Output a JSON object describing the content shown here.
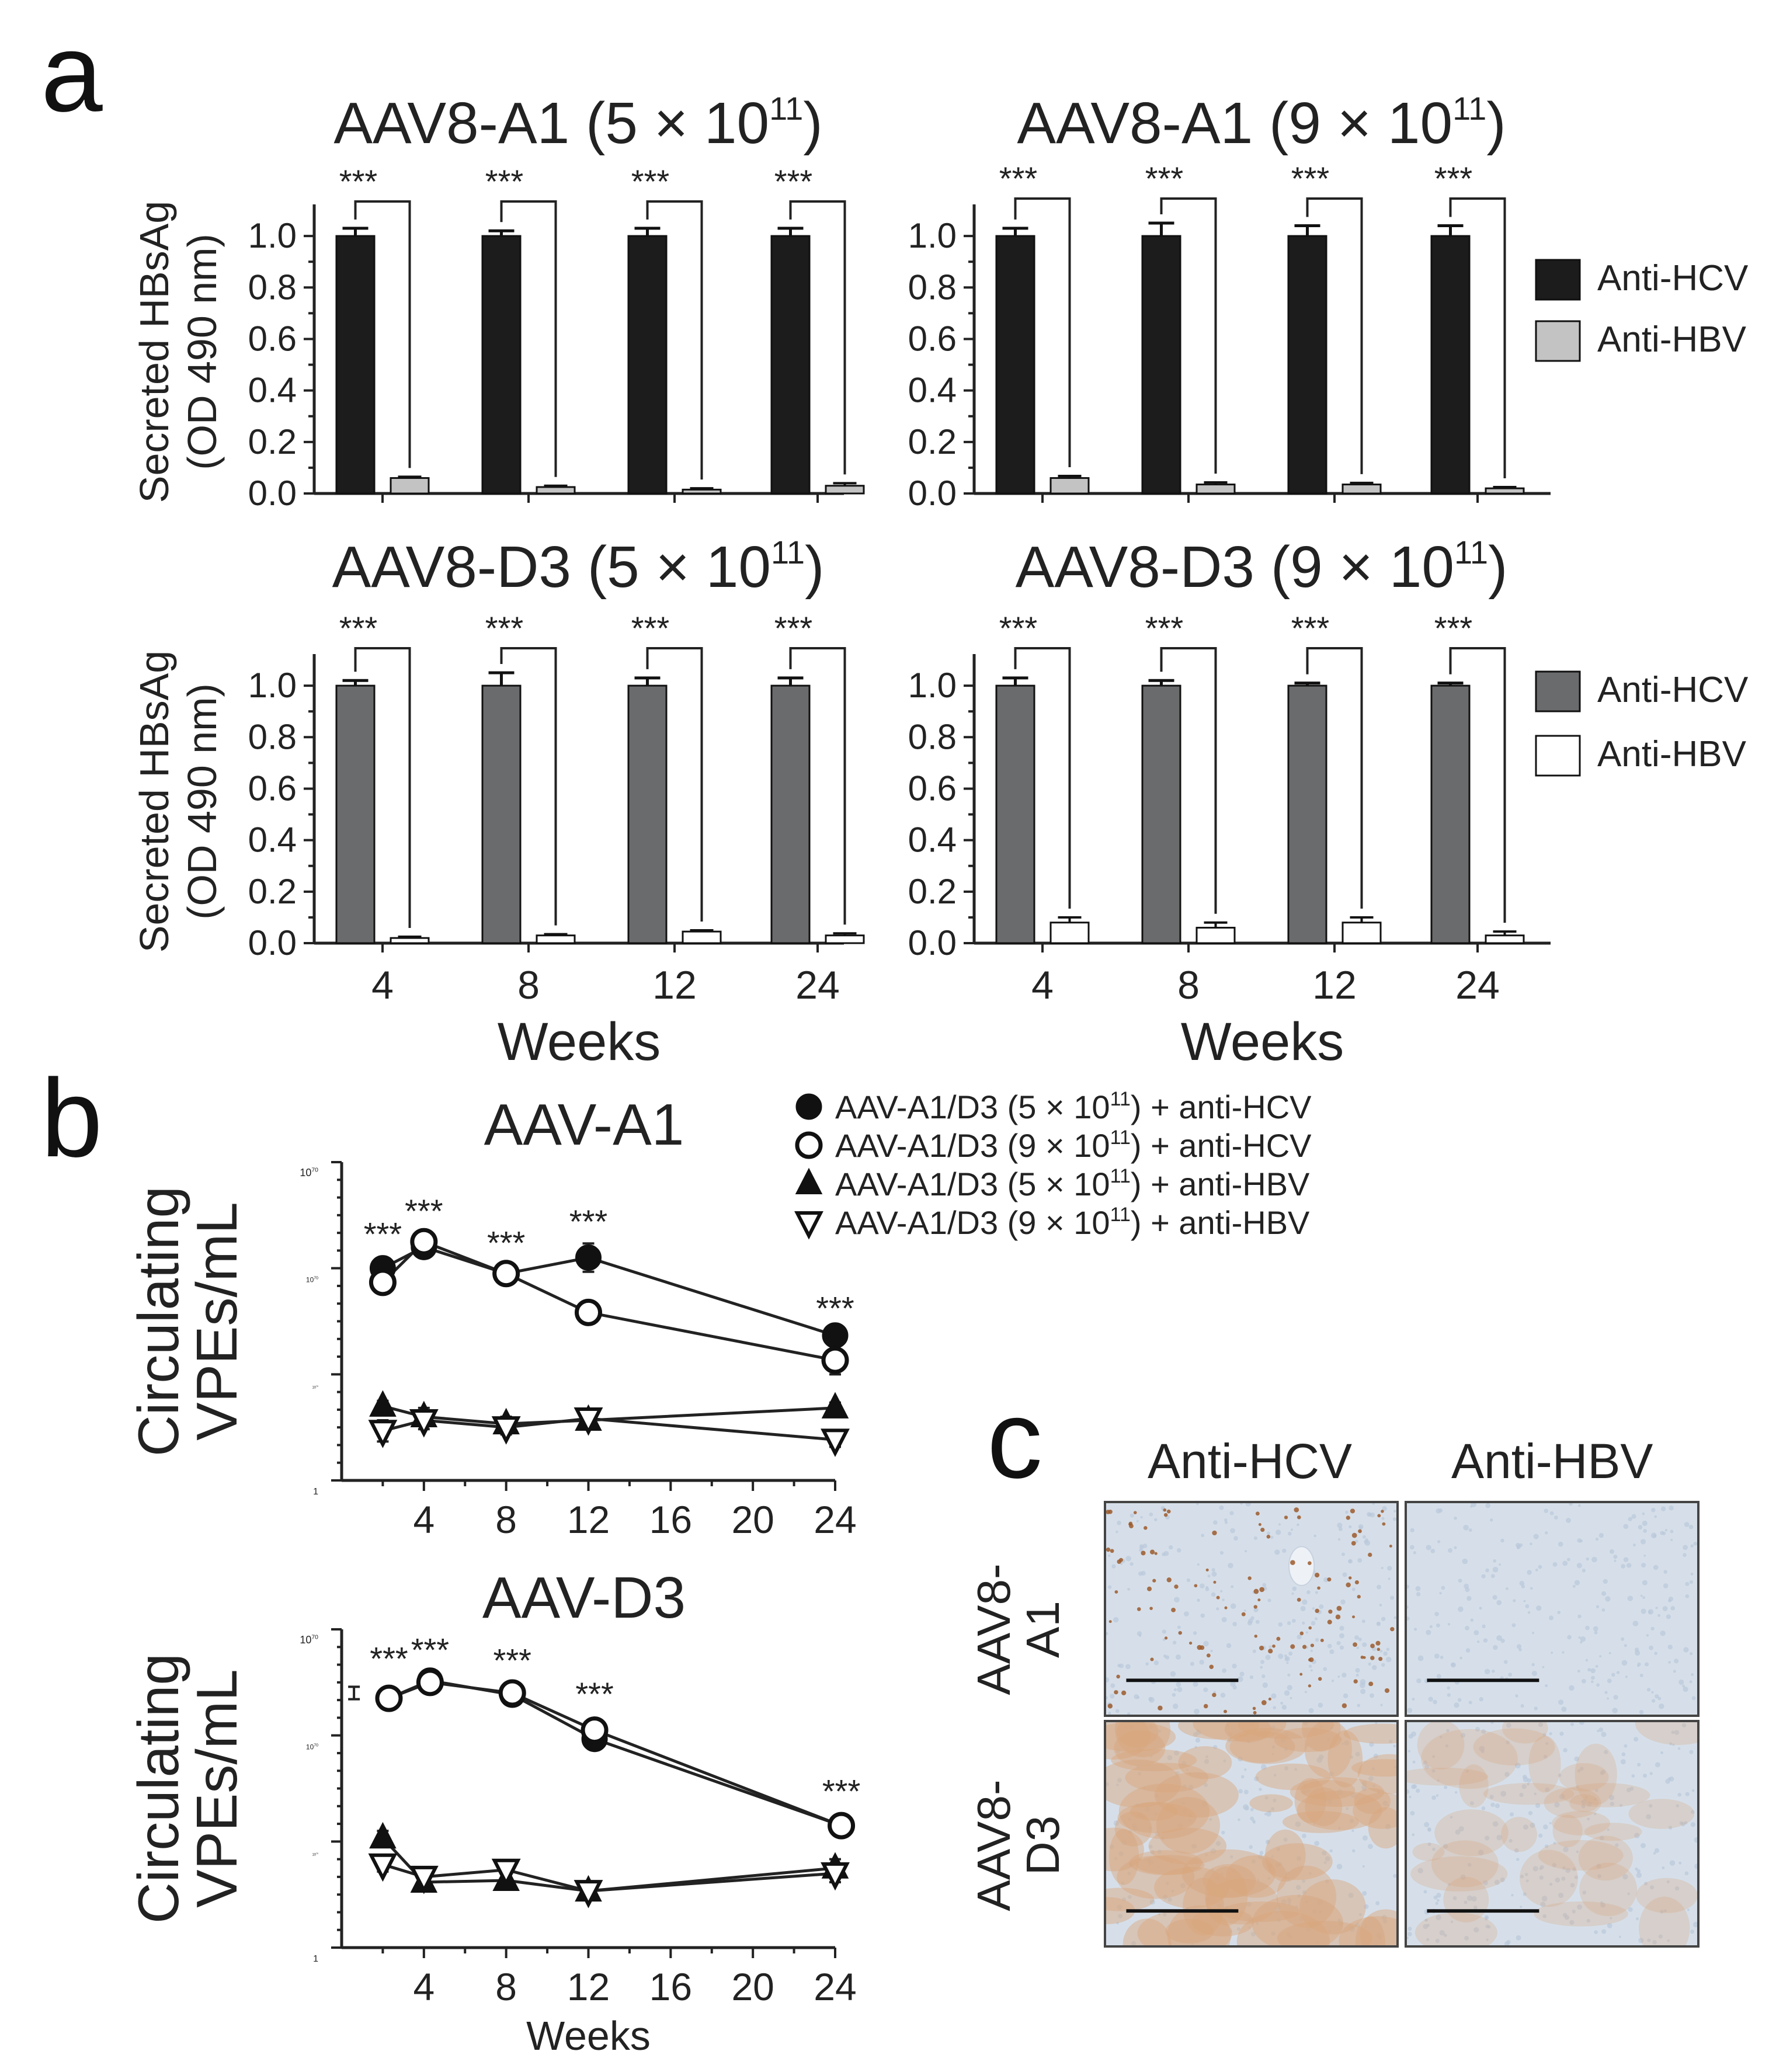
{
  "panel_labels": {
    "a": "a",
    "b": "b",
    "c": "c"
  },
  "colors": {
    "hcv_black": "#1c1c1c",
    "hbv_lightgray": "#c3c3c3",
    "hcv_gray": "#6a6b6d",
    "hbv_white": "#ffffff",
    "axis": "#222222",
    "tissue_blue": "#d6dfe9",
    "stain_brown": "#9c5a2c"
  },
  "panel_a": {
    "legend_top": [
      {
        "label": "Anti-HCV",
        "color": "#1c1c1c"
      },
      {
        "label": "Anti-HBV",
        "color": "#c3c3c3"
      }
    ],
    "legend_bottom": [
      {
        "label": "Anti-HCV",
        "color": "#6a6b6d"
      },
      {
        "label": "Anti-HBV",
        "color": "#ffffff"
      }
    ],
    "ylabel_line1": "Secreted HBsAg",
    "ylabel_line2": "(OD 490 nm)",
    "xlabel": "Weeks",
    "significance": "***"
  },
  "panel_b": {
    "legend": [
      {
        "marker": "filled-circle",
        "prefix": "AAV-A1/D3 (5 × 10",
        "exp": "11",
        "suffix": ") + anti-HCV"
      },
      {
        "marker": "open-circle",
        "prefix": "AAV-A1/D3 (9 × 10",
        "exp": "11",
        "suffix": ") + anti-HCV"
      },
      {
        "marker": "filled-triangle-up",
        "prefix": "AAV-A1/D3 (5 × 10",
        "exp": "11",
        "suffix": ") + anti-HBV"
      },
      {
        "marker": "open-triangle-down",
        "prefix": "AAV-A1/D3 (9 × 10",
        "exp": "11",
        "suffix": ") + anti-HBV"
      }
    ],
    "ylabel_line1": "Circulating",
    "ylabel_line2": "VPEs/mL",
    "xlabel": "Weeks",
    "significance": "***"
  },
  "panel_c": {
    "columns": [
      "Anti-HCV",
      "Anti-HBV"
    ],
    "rows": [
      {
        "line1": "AAV8-",
        "line2": "A1"
      },
      {
        "line1": "AAV8-",
        "line2": "D3"
      }
    ],
    "images": [
      {
        "name": "micrograph-a1-anti-hcv",
        "stain": "sparse-nuclear"
      },
      {
        "name": "micrograph-a1-anti-hbv",
        "stain": "none"
      },
      {
        "name": "micrograph-d3-anti-hcv",
        "stain": "strong-diffuse"
      },
      {
        "name": "micrograph-d3-anti-hbv",
        "stain": "weak-patchy"
      }
    ]
  },
  "chart_data": [
    {
      "id": "a-top-left",
      "type": "bar",
      "title_prefix": "AAV8-A1 (5 × 10",
      "title_exp": "11",
      "title_suffix": ")",
      "categories": [
        "4",
        "8",
        "12",
        "24"
      ],
      "series": [
        {
          "name": "Anti-HCV",
          "values": [
            1.0,
            1.0,
            1.0,
            1.0
          ],
          "errors": [
            0.03,
            0.02,
            0.03,
            0.03
          ]
        },
        {
          "name": "Anti-HBV",
          "values": [
            0.06,
            0.025,
            0.015,
            0.03
          ],
          "errors": [
            0.005,
            0.005,
            0.005,
            0.01
          ]
        }
      ],
      "ylabel": "Secreted HBsAg (OD 490 nm)",
      "xlabel": "",
      "ylim": [
        0,
        1.1
      ],
      "yticks": [
        "0.0",
        "0.2",
        "0.4",
        "0.6",
        "0.8",
        "1.0"
      ],
      "significance": [
        "***",
        "***",
        "***",
        "***"
      ],
      "grid": false,
      "legend": "none"
    },
    {
      "id": "a-top-right",
      "type": "bar",
      "title_prefix": "AAV8-A1 (9 × 10",
      "title_exp": "11",
      "title_suffix": ")",
      "categories": [
        "4",
        "8",
        "12",
        "24"
      ],
      "series": [
        {
          "name": "Anti-HCV",
          "values": [
            1.0,
            1.0,
            1.0,
            1.0
          ],
          "errors": [
            0.03,
            0.05,
            0.04,
            0.04
          ]
        },
        {
          "name": "Anti-HBV",
          "values": [
            0.06,
            0.035,
            0.035,
            0.02
          ],
          "errors": [
            0.008,
            0.008,
            0.006,
            0.005
          ]
        }
      ],
      "ylabel": "",
      "xlabel": "",
      "ylim": [
        0,
        1.1
      ],
      "yticks": [
        "0.0",
        "0.2",
        "0.4",
        "0.6",
        "0.8",
        "1.0"
      ],
      "significance": [
        "***",
        "***",
        "***",
        "***"
      ],
      "grid": false,
      "legend": "right"
    },
    {
      "id": "a-bottom-left",
      "type": "bar",
      "title_prefix": "AAV8-D3 (5 × 10",
      "title_exp": "11",
      "title_suffix": ")",
      "categories": [
        "4",
        "8",
        "12",
        "24"
      ],
      "series": [
        {
          "name": "Anti-HCV",
          "values": [
            1.0,
            1.0,
            1.0,
            1.0
          ],
          "errors": [
            0.02,
            0.05,
            0.03,
            0.03
          ]
        },
        {
          "name": "Anti-HBV",
          "values": [
            0.02,
            0.03,
            0.045,
            0.03
          ],
          "errors": [
            0.005,
            0.005,
            0.005,
            0.008
          ]
        }
      ],
      "ylabel": "Secreted HBsAg (OD 490 nm)",
      "xlabel": "Weeks",
      "ylim": [
        0,
        1.1
      ],
      "yticks": [
        "0.0",
        "0.2",
        "0.4",
        "0.6",
        "0.8",
        "1.0"
      ],
      "significance": [
        "***",
        "***",
        "***",
        "***"
      ],
      "grid": false,
      "legend": "none"
    },
    {
      "id": "a-bottom-right",
      "type": "bar",
      "title_prefix": "AAV8-D3 (9 × 10",
      "title_exp": "11",
      "title_suffix": ")",
      "categories": [
        "4",
        "8",
        "12",
        "24"
      ],
      "series": [
        {
          "name": "Anti-HCV",
          "values": [
            1.0,
            1.0,
            1.0,
            1.0
          ],
          "errors": [
            0.03,
            0.02,
            0.01,
            0.01
          ]
        },
        {
          "name": "Anti-HBV",
          "values": [
            0.08,
            0.06,
            0.08,
            0.03
          ],
          "errors": [
            0.02,
            0.02,
            0.02,
            0.015
          ]
        }
      ],
      "ylabel": "",
      "xlabel": "Weeks",
      "ylim": [
        0,
        1.1
      ],
      "yticks": [
        "0.0",
        "0.2",
        "0.4",
        "0.6",
        "0.8",
        "1.0"
      ],
      "significance": [
        "***",
        "***",
        "***",
        "***"
      ],
      "grid": false,
      "legend": "right"
    },
    {
      "id": "b-top",
      "type": "line",
      "title": "AAV-A1",
      "y_scale": "log10",
      "xlim": [
        0,
        24
      ],
      "xticks": [
        4,
        8,
        12,
        16,
        20,
        24
      ],
      "ylim_exp": [
        0,
        18
      ],
      "ytick_labels": [
        {
          "base": "1",
          "exp": ""
        },
        {
          "base": "10",
          "exp": "6"
        },
        {
          "base": "10",
          "exp": "12"
        },
        {
          "base": "10",
          "exp": "18"
        }
      ],
      "series": [
        {
          "name": "AAV-A1/D3 (5 × 10^11) + anti-HCV",
          "marker": "filled-circle",
          "x": [
            2,
            4,
            8,
            12,
            24
          ],
          "y_log10": [
            12.0,
            13.2,
            11.7,
            12.6,
            8.2
          ],
          "err_log10": [
            0.6,
            0.5,
            0.3,
            0.8,
            0.2
          ]
        },
        {
          "name": "AAV-A1/D3 (9 × 10^11) + anti-HCV",
          "marker": "open-circle",
          "x": [
            2,
            4,
            8,
            12,
            24
          ],
          "y_log10": [
            11.2,
            13.5,
            11.7,
            9.5,
            6.8
          ],
          "err_log10": [
            0.4,
            0.5,
            0.3,
            0.2,
            0.8
          ]
        },
        {
          "name": "AAV-A1/D3 (5 × 10^11) + anti-HBV",
          "marker": "filled-triangle-up",
          "x": [
            2,
            4,
            8,
            12,
            24
          ],
          "y_log10": [
            4.2,
            3.6,
            3.2,
            3.4,
            4.1
          ],
          "err_log10": [
            0.3,
            0.5,
            0.4,
            0.3,
            0.3
          ]
        },
        {
          "name": "AAV-A1/D3 (9 × 10^11) + anti-HBV",
          "marker": "open-triangle-down",
          "x": [
            2,
            4,
            8,
            12,
            24
          ],
          "y_log10": [
            2.8,
            3.4,
            3.0,
            3.5,
            2.3
          ],
          "err_log10": [
            0.6,
            0.5,
            0.4,
            0.3,
            0.4
          ]
        }
      ],
      "significance": [
        {
          "x": 2,
          "y_log10": 13.3
        },
        {
          "x": 4,
          "y_log10": 14.6
        },
        {
          "x": 8,
          "y_log10": 12.8
        },
        {
          "x": 12,
          "y_log10": 14.0
        },
        {
          "x": 24,
          "y_log10": 9.1
        }
      ],
      "xlabel": "",
      "ylabel": "Circulating VPEs/mL",
      "grid": false
    },
    {
      "id": "b-bottom",
      "type": "line",
      "title": "AAV-D3",
      "y_scale": "log10",
      "xlim": [
        0,
        24
      ],
      "xticks": [
        4,
        8,
        12,
        16,
        20,
        24
      ],
      "ylim_exp": [
        0,
        18
      ],
      "ytick_labels": [
        {
          "base": "1",
          "exp": ""
        },
        {
          "base": "10",
          "exp": "6"
        },
        {
          "base": "10",
          "exp": "12"
        },
        {
          "base": "10",
          "exp": "18"
        }
      ],
      "series": [
        {
          "name": "AAV-A1/D3 (5 × 10^11) + anti-HCV",
          "marker": "filled-circle",
          "x": [
            2.3,
            4.3,
            8.3,
            12.3,
            24.3
          ],
          "y_log10": [
            14.1,
            15.1,
            14.3,
            11.8,
            6.9
          ],
          "err_log10": [
            0.3,
            0.2,
            0.3,
            0.4,
            0.3
          ]
        },
        {
          "name": "AAV-A1/D3 (9 × 10^11) + anti-HCV",
          "marker": "open-circle",
          "x": [
            2.3,
            4.3,
            8.3,
            12.3,
            24.3
          ],
          "y_log10": [
            14.1,
            15.0,
            14.4,
            12.3,
            6.9
          ],
          "err_log10": [
            0.4,
            0.2,
            0.3,
            0.4,
            0.3
          ]
        },
        {
          "name": "AAV-A1/D3 (5 × 10^11) + anti-HBV",
          "marker": "filled-triangle-up",
          "x": [
            2,
            4,
            8,
            12,
            24
          ],
          "y_log10": [
            6.2,
            3.7,
            3.8,
            3.2,
            4.5
          ],
          "err_log10": [
            0.4,
            0.4,
            0.4,
            0.5,
            0.5
          ]
        },
        {
          "name": "AAV-A1/D3 (9 × 10^11) + anti-HBV",
          "marker": "open-triangle-down",
          "x": [
            2,
            4,
            8,
            12,
            24
          ],
          "y_log10": [
            4.7,
            4.0,
            4.4,
            3.2,
            4.2
          ],
          "err_log10": [
            0.4,
            0.4,
            0.4,
            0.5,
            0.5
          ]
        }
      ],
      "extra_errorbar": {
        "x": 0.6,
        "y_log10": 14.4,
        "err_log10": 0.35
      },
      "significance": [
        {
          "x": 2.3,
          "y_log10": 15.7
        },
        {
          "x": 4.3,
          "y_log10": 16.2
        },
        {
          "x": 8.3,
          "y_log10": 15.6
        },
        {
          "x": 12.3,
          "y_log10": 13.7
        },
        {
          "x": 24.3,
          "y_log10": 8.2
        }
      ],
      "xlabel": "Weeks",
      "ylabel": "Circulating VPEs/mL",
      "grid": false
    }
  ]
}
